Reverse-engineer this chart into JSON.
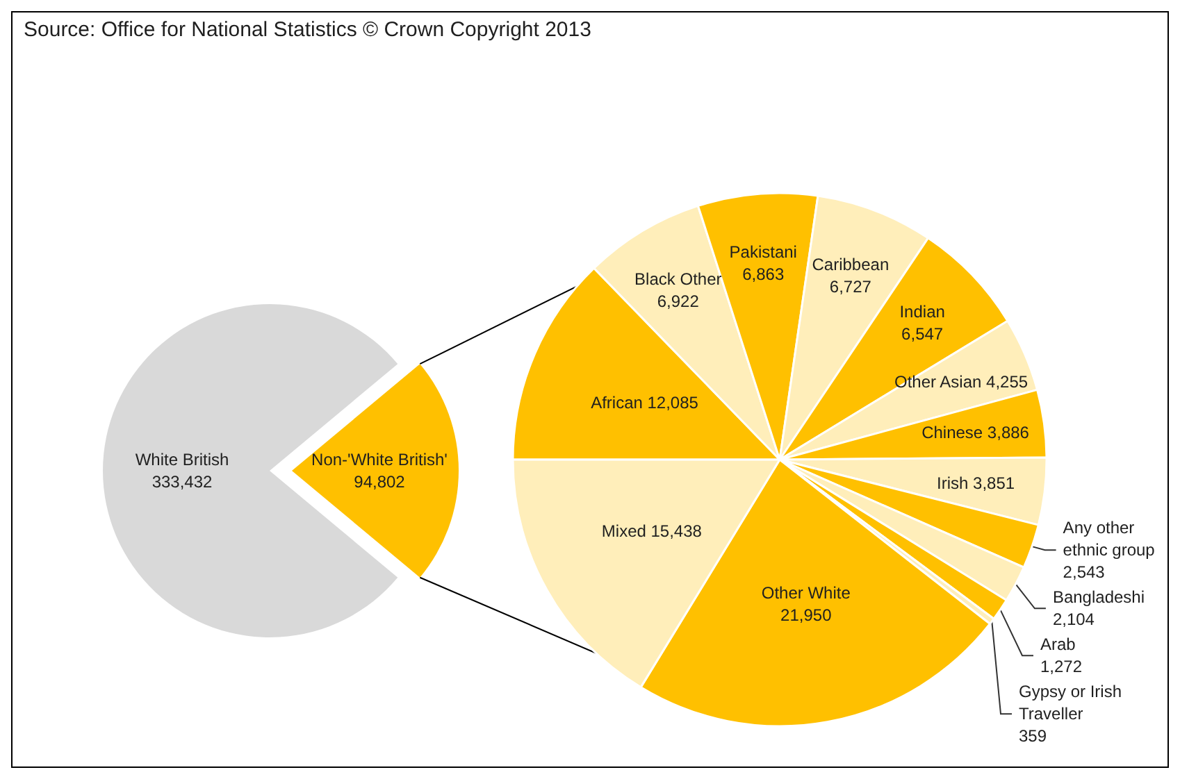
{
  "chart_data": [
    {
      "type": "pie",
      "annotations": [
        "Source: Office for National Statistics © Crown Copyright 2013"
      ],
      "categories": [
        "Non-'White British'",
        "White British"
      ],
      "values": [
        94802,
        333432
      ],
      "value_labels": [
        "94,802",
        "333,432"
      ],
      "colors": [
        "#ffc000",
        "#d9d9d9"
      ]
    },
    {
      "type": "pie",
      "categories": [
        "African",
        "Black Other",
        "Pakistani",
        "Caribbean",
        "Indian",
        "Other Asian",
        "Chinese",
        "Irish",
        "Any other ethnic group",
        "Bangladeshi",
        "Arab",
        "Gypsy or Irish Traveller",
        "Other White",
        "Mixed"
      ],
      "values": [
        12085,
        6922,
        6863,
        6727,
        6547,
        4255,
        3886,
        3851,
        2543,
        2104,
        1272,
        359,
        21950,
        15438
      ],
      "value_labels": [
        "12,085",
        "6,922",
        "6,863",
        "6,727",
        "6,547",
        "4,255",
        "3,886",
        "3,851",
        "2,543",
        "2,104",
        "1,272",
        "359",
        "21,950",
        "15,438"
      ],
      "colors": [
        "#ffc000",
        "#ffeeba",
        "#ffc000",
        "#ffeeba",
        "#ffc000",
        "#ffeeba",
        "#ffc000",
        "#ffeeba",
        "#ffc000",
        "#ffeeba",
        "#ffc000",
        "#ffeeba",
        "#ffc000",
        "#ffeeba"
      ]
    }
  ]
}
